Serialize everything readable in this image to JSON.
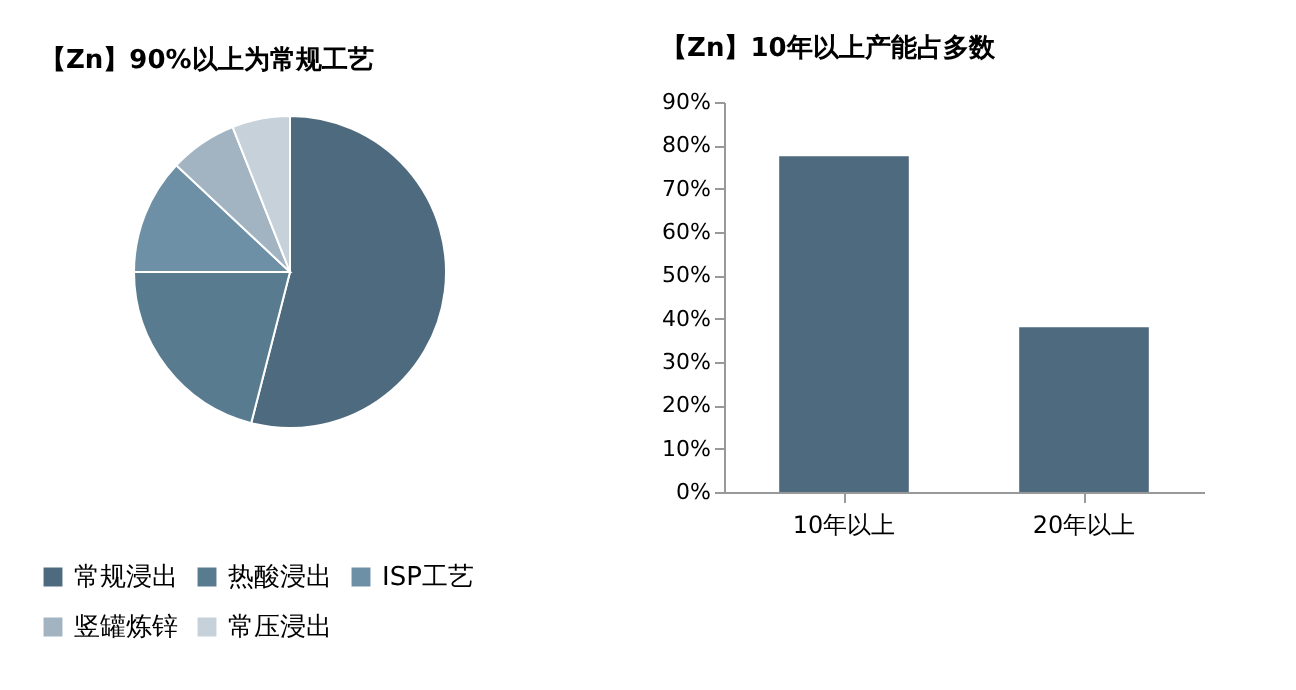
{
  "chart_data": [
    {
      "type": "pie",
      "title": "【Zn】90%以上为常规工艺",
      "categories": [
        "常规浸出",
        "热酸浸出",
        "ISP工艺",
        "竖罐炼锌",
        "常压浸出"
      ],
      "values": [
        54,
        21,
        12,
        7,
        6
      ],
      "colors": [
        "#4e6a7e",
        "#587b90",
        "#6e90a6",
        "#a2b4c2",
        "#c6d1da"
      ],
      "legend": "bottom"
    },
    {
      "type": "bar",
      "title": "【Zn】10年以上产能占多数",
      "categories": [
        "10年以上",
        "20年以上"
      ],
      "values": [
        77.5,
        38
      ],
      "color": "#4e6a7e",
      "ylim": [
        0,
        90
      ],
      "yticks": [
        {
          "value": 0,
          "label": "0%"
        },
        {
          "value": 10,
          "label": "10%"
        },
        {
          "value": 20,
          "label": "20%"
        },
        {
          "value": 30,
          "label": "30%"
        },
        {
          "value": 40,
          "label": "40%"
        },
        {
          "value": 50,
          "label": "50%"
        },
        {
          "value": 60,
          "label": "60%"
        },
        {
          "value": 70,
          "label": "70%"
        },
        {
          "value": 80,
          "label": "80%"
        },
        {
          "value": 90,
          "label": "90%"
        }
      ]
    }
  ]
}
